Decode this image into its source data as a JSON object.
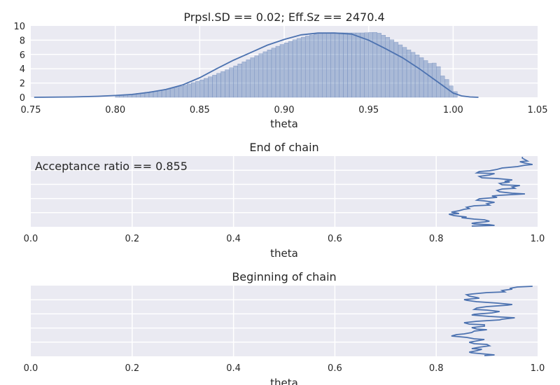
{
  "chart_data": [
    {
      "type": "bar",
      "title": "Prpsl.SD == 0.02; Eff.Sz == 2470.4",
      "xlabel": "theta",
      "ylabel": "",
      "xlim": [
        0.75,
        1.05
      ],
      "ylim": [
        0,
        10
      ],
      "xticks": [
        0.75,
        0.8,
        0.85,
        0.9,
        0.95,
        1.0,
        1.05
      ],
      "xtick_labels": [
        "0.75",
        "0.80",
        "0.85",
        "0.90",
        "0.95",
        "1.00",
        "1.05"
      ],
      "yticks": [
        0,
        2,
        4,
        6,
        8,
        10
      ],
      "ytick_labels": [
        "0",
        "2",
        "4",
        "6",
        "8",
        "10"
      ],
      "grid": true,
      "histogram": {
        "bin_width": 0.0025,
        "x_start": 0.8,
        "values": [
          0.3,
          0.32,
          0.35,
          0.4,
          0.48,
          0.55,
          0.62,
          0.7,
          0.78,
          0.86,
          0.95,
          1.05,
          1.15,
          1.27,
          1.4,
          1.55,
          1.7,
          1.87,
          2.05,
          2.24,
          2.44,
          2.65,
          2.87,
          3.1,
          3.35,
          3.6,
          3.86,
          4.13,
          4.4,
          4.68,
          4.96,
          5.25,
          5.54,
          5.82,
          6.1,
          6.38,
          6.64,
          6.9,
          7.15,
          7.4,
          7.62,
          7.84,
          8.05,
          8.24,
          8.42,
          8.58,
          8.72,
          8.84,
          8.94,
          9.0,
          9.04,
          9.06,
          9.05,
          9.04,
          9.03,
          9.02,
          9.02,
          9.02,
          9.02,
          9.05,
          9.08,
          9.1,
          8.98,
          8.7,
          8.4,
          8.05,
          7.7,
          7.35,
          7.0,
          6.65,
          6.3,
          5.95,
          5.55,
          5.15,
          4.75,
          4.8,
          4.3,
          3.0,
          2.5,
          1.6,
          0.8
        ]
      },
      "density_curve": {
        "x": [
          0.752,
          0.775,
          0.79,
          0.8,
          0.81,
          0.82,
          0.83,
          0.84,
          0.85,
          0.86,
          0.87,
          0.88,
          0.89,
          0.9,
          0.91,
          0.92,
          0.93,
          0.94,
          0.95,
          0.96,
          0.97,
          0.98,
          0.99,
          1.0,
          1.005,
          1.01,
          1.015
        ],
        "y": [
          0.0,
          0.05,
          0.15,
          0.25,
          0.4,
          0.7,
          1.1,
          1.75,
          2.75,
          4.0,
          5.2,
          6.25,
          7.3,
          8.1,
          8.75,
          9.0,
          9.0,
          8.85,
          8.0,
          6.8,
          5.55,
          4.0,
          2.3,
          0.6,
          0.2,
          0.05,
          0.0
        ]
      }
    },
    {
      "type": "line",
      "title": "End of chain",
      "xlabel": "theta",
      "xlim": [
        0.0,
        1.0
      ],
      "xticks": [
        0.0,
        0.2,
        0.4,
        0.6,
        0.8,
        1.0
      ],
      "xtick_labels": [
        "0.0",
        "0.2",
        "0.4",
        "0.6",
        "0.8",
        "1.0"
      ],
      "grid": true,
      "annotation": "Acceptance ratio == 0.855",
      "x_values": [
        0.97,
        0.97,
        0.975,
        0.98,
        0.965,
        0.975,
        0.99,
        0.975,
        0.96,
        0.93,
        0.92,
        0.905,
        0.885,
        0.88,
        0.915,
        0.905,
        0.885,
        0.89,
        0.92,
        0.95,
        0.935,
        0.945,
        0.925,
        0.93,
        0.965,
        0.95,
        0.955,
        0.93,
        0.92,
        0.925,
        0.95,
        0.975,
        0.925,
        0.91,
        0.92,
        0.885,
        0.88,
        0.895,
        0.915,
        0.9,
        0.905,
        0.875,
        0.86,
        0.865,
        0.855,
        0.845,
        0.83,
        0.845,
        0.825,
        0.835,
        0.86,
        0.85,
        0.875,
        0.895,
        0.905,
        0.895,
        0.88,
        0.87,
        0.875,
        0.905,
        0.915,
        0.87
      ],
      "y_index": [
        99,
        97,
        95,
        93,
        92,
        90,
        88,
        87,
        85,
        83,
        81,
        79,
        78,
        76,
        75,
        73,
        71,
        69,
        68,
        66,
        64,
        63,
        61,
        59,
        58,
        56,
        54,
        53,
        51,
        49,
        47,
        46,
        44,
        43,
        41,
        39,
        37,
        36,
        34,
        32,
        30,
        29,
        27,
        25,
        24,
        22,
        20,
        18,
        17,
        15,
        13,
        12,
        10,
        9,
        7,
        6,
        5,
        4,
        3,
        2,
        1,
        0
      ]
    },
    {
      "type": "line",
      "title": "Beginning of chain",
      "xlabel": "theta",
      "xlim": [
        0.0,
        1.0
      ],
      "xticks": [
        0.0,
        0.2,
        0.4,
        0.6,
        0.8,
        1.0
      ],
      "xtick_labels": [
        "0.0",
        "0.2",
        "0.4",
        "0.6",
        "0.8",
        "1.0"
      ],
      "grid": true,
      "x_values": [
        0.99,
        0.96,
        0.945,
        0.95,
        0.93,
        0.935,
        0.9,
        0.87,
        0.86,
        0.865,
        0.88,
        0.885,
        0.855,
        0.86,
        0.88,
        0.92,
        0.95,
        0.94,
        0.9,
        0.88,
        0.875,
        0.9,
        0.925,
        0.91,
        0.875,
        0.87,
        0.905,
        0.955,
        0.93,
        0.925,
        0.88,
        0.855,
        0.865,
        0.895,
        0.895,
        0.87,
        0.88,
        0.9,
        0.875,
        0.87,
        0.855,
        0.84,
        0.83,
        0.86,
        0.875,
        0.895,
        0.88,
        0.865,
        0.875,
        0.9,
        0.905,
        0.885,
        0.87,
        0.89,
        0.88,
        0.865,
        0.87,
        0.9,
        0.915,
        0.895
      ],
      "y_index": [
        99,
        98,
        96,
        95,
        93,
        91,
        90,
        88,
        87,
        85,
        83,
        82,
        80,
        79,
        77,
        75,
        73,
        72,
        70,
        68,
        66,
        65,
        63,
        61,
        59,
        58,
        56,
        54,
        52,
        51,
        49,
        47,
        45,
        44,
        42,
        40,
        38,
        37,
        35,
        33,
        31,
        30,
        28,
        26,
        24,
        23,
        21,
        19,
        17,
        16,
        14,
        12,
        10,
        9,
        7,
        5,
        4,
        2,
        1,
        0
      ]
    }
  ]
}
